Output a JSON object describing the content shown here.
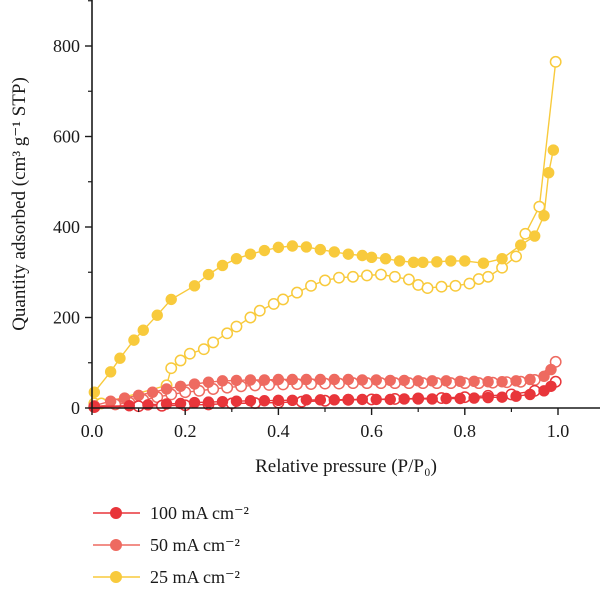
{
  "chart_data": {
    "type": "scatter",
    "xlabel": "Relative pressure (P/P₀)",
    "ylabel": "Quantity adsorbed (cm³ g⁻¹ STP)",
    "xlim": [
      0.0,
      1.1
    ],
    "ylim": [
      0,
      900
    ],
    "xticks": [
      "0.0",
      "0.2",
      "0.4",
      "0.6",
      "0.8",
      "1.0"
    ],
    "yticks": [
      "0",
      "200",
      "400",
      "600",
      "800"
    ],
    "grid": false,
    "legend_position": "bottom-left",
    "series": [
      {
        "name": "25 mA cm⁻²",
        "color": "#F8CA3C",
        "adsorption": {
          "x": [
            0.005,
            0.04,
            0.06,
            0.09,
            0.11,
            0.14,
            0.17,
            0.22,
            0.25,
            0.28,
            0.31,
            0.34,
            0.37,
            0.4,
            0.43,
            0.46,
            0.49,
            0.52,
            0.55,
            0.58,
            0.6,
            0.63,
            0.66,
            0.69,
            0.71,
            0.74,
            0.77,
            0.8,
            0.84,
            0.88,
            0.92,
            0.95,
            0.97,
            0.98,
            0.99
          ],
          "y": [
            35,
            80,
            110,
            150,
            172,
            205,
            240,
            270,
            295,
            315,
            330,
            340,
            348,
            355,
            358,
            356,
            350,
            345,
            340,
            337,
            333,
            330,
            325,
            322,
            322,
            323,
            325,
            325,
            320,
            330,
            360,
            380,
            425,
            520,
            570
          ]
        },
        "desorption": {
          "x": [
            0.005,
            0.02,
            0.16,
            0.17,
            0.19,
            0.21,
            0.24,
            0.26,
            0.29,
            0.31,
            0.34,
            0.36,
            0.39,
            0.41,
            0.44,
            0.47,
            0.5,
            0.53,
            0.56,
            0.59,
            0.62,
            0.65,
            0.68,
            0.7,
            0.72,
            0.75,
            0.78,
            0.81,
            0.83,
            0.85,
            0.88,
            0.91,
            0.93,
            0.96,
            0.995
          ],
          "y": [
            10,
            10,
            50,
            88,
            105,
            120,
            130,
            145,
            165,
            180,
            200,
            215,
            230,
            240,
            255,
            270,
            282,
            288,
            290,
            293,
            295,
            290,
            284,
            272,
            265,
            268,
            270,
            275,
            285,
            290,
            310,
            335,
            385,
            445,
            765
          ]
        }
      },
      {
        "name": "50 mA cm⁻²",
        "color": "#EE6A60",
        "adsorption": {
          "x": [
            0.005,
            0.04,
            0.07,
            0.1,
            0.13,
            0.16,
            0.19,
            0.22,
            0.25,
            0.28,
            0.31,
            0.34,
            0.37,
            0.4,
            0.43,
            0.46,
            0.49,
            0.52,
            0.55,
            0.58,
            0.61,
            0.64,
            0.67,
            0.7,
            0.73,
            0.76,
            0.79,
            0.82,
            0.85,
            0.88,
            0.91,
            0.94,
            0.97,
            0.985
          ],
          "y": [
            5,
            15,
            22,
            28,
            35,
            42,
            48,
            53,
            57,
            60,
            61,
            62,
            62,
            63,
            63,
            63,
            63,
            63,
            63,
            62,
            62,
            61,
            61,
            60,
            60,
            60,
            59,
            59,
            58,
            58,
            60,
            63,
            70,
            85
          ]
        },
        "desorption": {
          "x": [
            0.005,
            0.05,
            0.08,
            0.11,
            0.14,
            0.17,
            0.2,
            0.23,
            0.26,
            0.29,
            0.32,
            0.35,
            0.38,
            0.41,
            0.44,
            0.47,
            0.5,
            0.53,
            0.56,
            0.59,
            0.62,
            0.65,
            0.68,
            0.71,
            0.74,
            0.77,
            0.8,
            0.83,
            0.86,
            0.89,
            0.92,
            0.95,
            0.995
          ],
          "y": [
            3,
            8,
            12,
            18,
            24,
            30,
            35,
            38,
            42,
            45,
            48,
            50,
            51,
            52,
            53,
            53,
            54,
            54,
            55,
            55,
            55,
            55,
            55,
            55,
            55,
            55,
            55,
            55,
            56,
            57,
            58,
            62,
            102
          ]
        }
      },
      {
        "name": "100 mA cm⁻²",
        "color": "#E8353A",
        "adsorption": {
          "x": [
            0.005,
            0.08,
            0.12,
            0.16,
            0.19,
            0.22,
            0.25,
            0.28,
            0.31,
            0.34,
            0.37,
            0.4,
            0.43,
            0.46,
            0.49,
            0.52,
            0.55,
            0.58,
            0.61,
            0.64,
            0.67,
            0.7,
            0.73,
            0.76,
            0.79,
            0.82,
            0.85,
            0.88,
            0.91,
            0.94,
            0.97,
            0.985
          ],
          "y": [
            3,
            5,
            7,
            9,
            10,
            12,
            13,
            14,
            15,
            16,
            16,
            17,
            17,
            18,
            18,
            18,
            19,
            19,
            19,
            19,
            20,
            20,
            20,
            21,
            21,
            22,
            23,
            24,
            26,
            30,
            38,
            48
          ]
        },
        "desorption": {
          "x": [
            0.005,
            0.1,
            0.15,
            0.2,
            0.25,
            0.3,
            0.35,
            0.4,
            0.45,
            0.5,
            0.55,
            0.6,
            0.65,
            0.7,
            0.75,
            0.8,
            0.85,
            0.9,
            0.95,
            0.995
          ],
          "y": [
            2,
            4,
            5,
            6,
            8,
            10,
            11,
            12,
            14,
            16,
            18,
            19,
            20,
            21,
            22,
            24,
            27,
            30,
            38,
            58
          ]
        }
      }
    ]
  }
}
